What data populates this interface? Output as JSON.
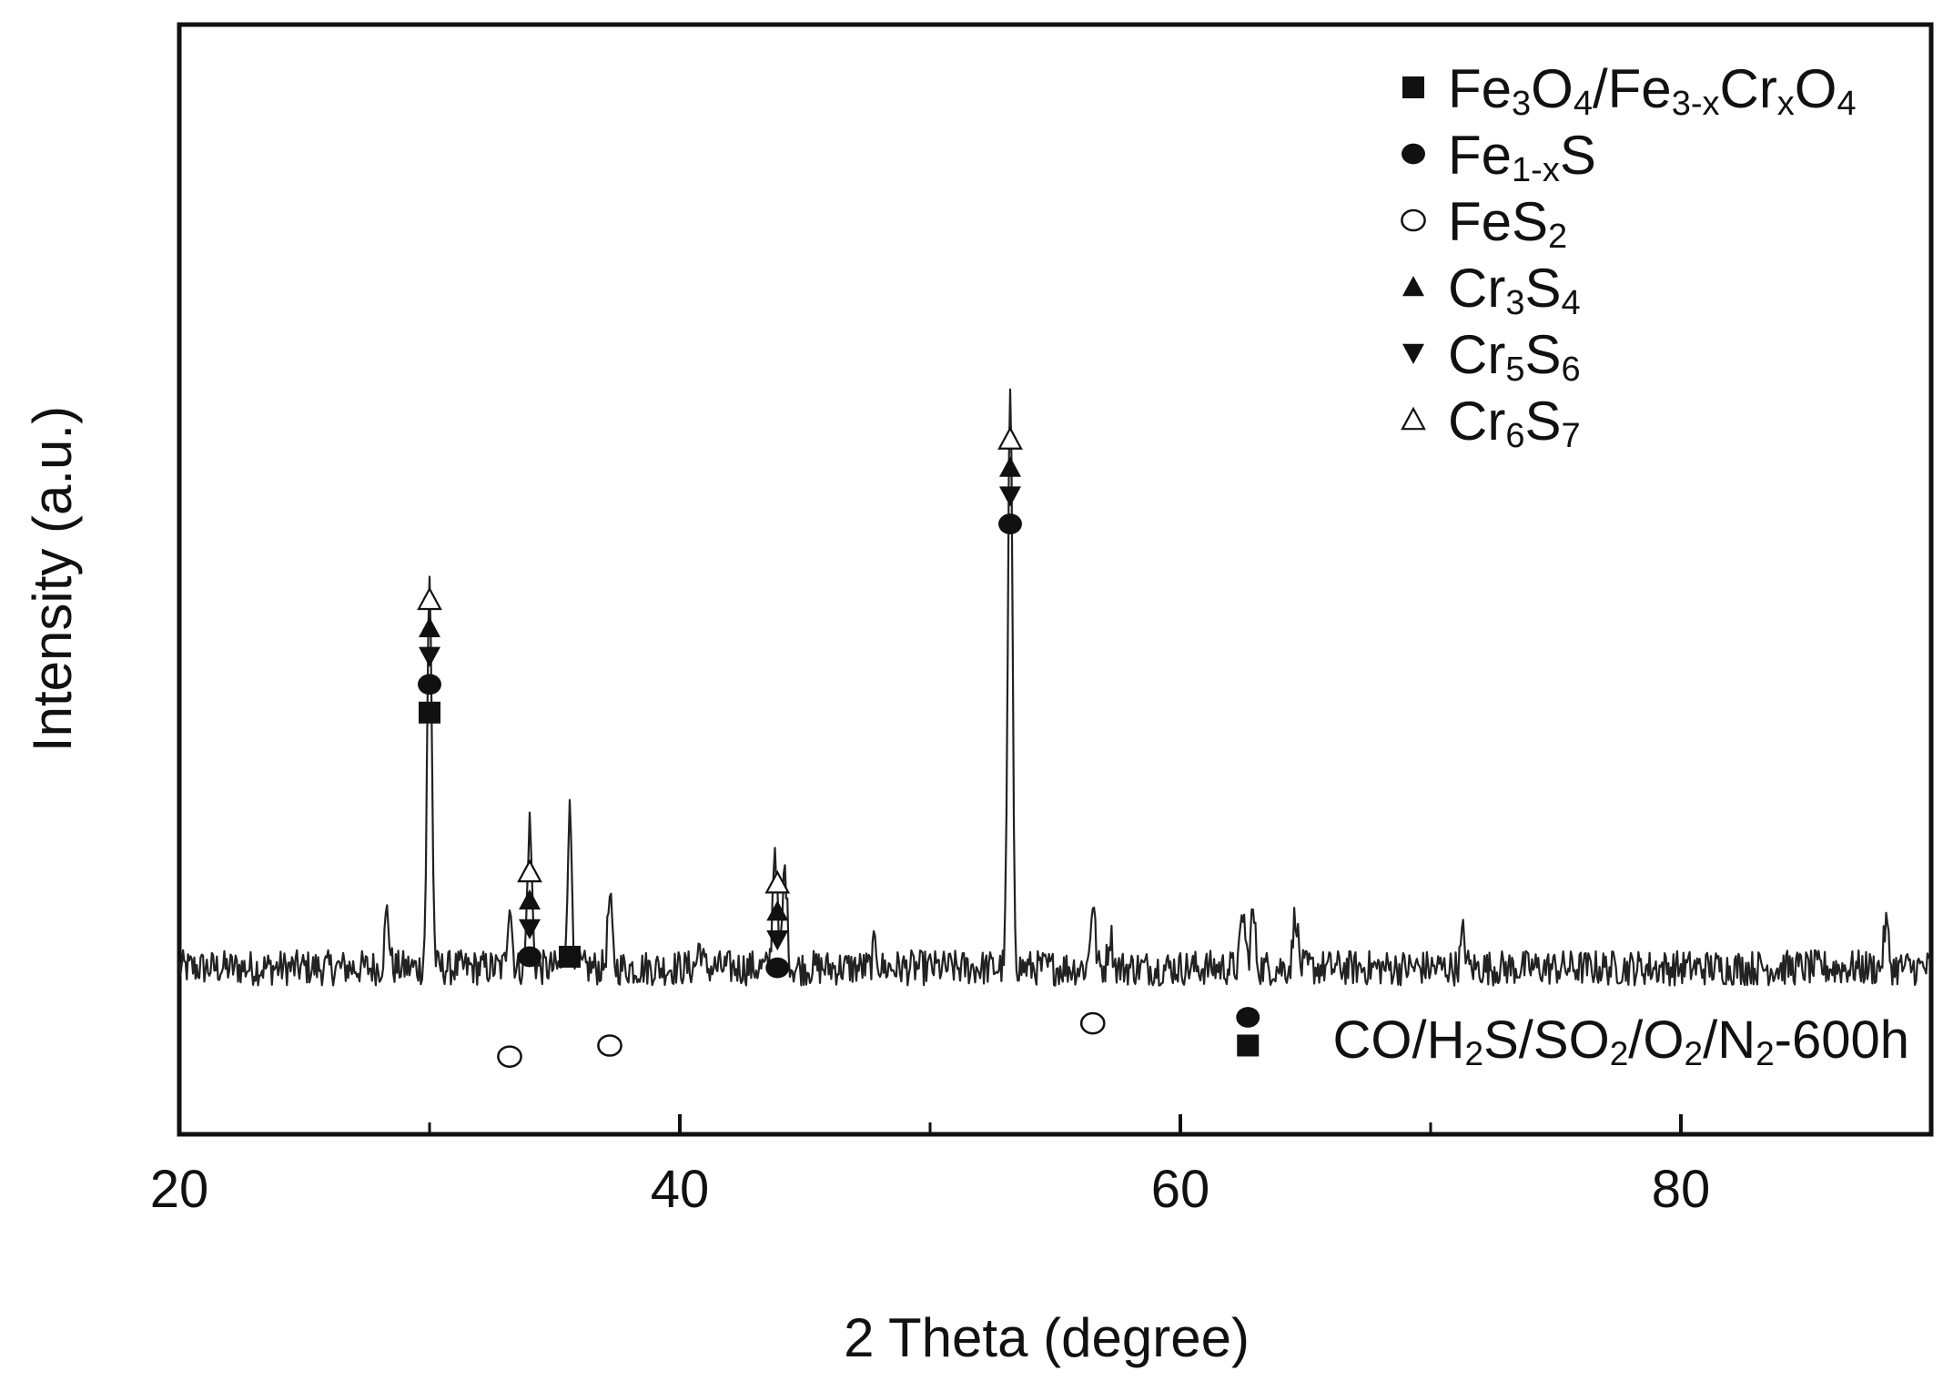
{
  "chart_data": {
    "type": "line",
    "title": "",
    "xlabel": "2 Theta (degree)",
    "ylabel": "Intensity (a.u.)",
    "xlim": [
      20,
      90
    ],
    "ylim": [
      0,
      100
    ],
    "xticks": [
      20,
      40,
      60,
      80
    ],
    "x_minor_ticks": [
      30,
      50,
      70,
      90
    ],
    "show_y_ticks": false,
    "grid": false,
    "legend_position": "top-right",
    "annotation": "CO/H2S/SO2/O2/N2-600h",
    "annotation_parts": [
      {
        "t": "CO/H",
        "s": ""
      },
      {
        "t": "2",
        "s": "sub"
      },
      {
        "t": "S/SO",
        "s": ""
      },
      {
        "t": "2",
        "s": "sub"
      },
      {
        "t": "/O",
        "s": ""
      },
      {
        "t": "2",
        "s": "sub"
      },
      {
        "t": "/N",
        "s": ""
      },
      {
        "t": "2",
        "s": "sub"
      },
      {
        "t": "-600h",
        "s": ""
      }
    ],
    "baseline": 15,
    "noise_amplitude": 1.6,
    "peaks": [
      {
        "x": 28.3,
        "h": 5
      },
      {
        "x": 30.0,
        "h": 35
      },
      {
        "x": 33.2,
        "h": 6
      },
      {
        "x": 34.0,
        "h": 13
      },
      {
        "x": 35.6,
        "h": 14
      },
      {
        "x": 37.2,
        "h": 6
      },
      {
        "x": 40.8,
        "h": 2
      },
      {
        "x": 43.8,
        "h": 11
      },
      {
        "x": 44.2,
        "h": 9
      },
      {
        "x": 47.8,
        "h": 2
      },
      {
        "x": 53.2,
        "h": 52
      },
      {
        "x": 56.5,
        "h": 6
      },
      {
        "x": 57.2,
        "h": 3
      },
      {
        "x": 62.5,
        "h": 5
      },
      {
        "x": 62.9,
        "h": 5
      },
      {
        "x": 64.6,
        "h": 5
      },
      {
        "x": 71.3,
        "h": 3
      },
      {
        "x": 88.2,
        "h": 4
      }
    ],
    "series": [
      {
        "name": "Fe3O4/Fe3-xCrxO4",
        "marker": "square",
        "parts": [
          {
            "t": "Fe",
            "s": ""
          },
          {
            "t": "3",
            "s": "sub"
          },
          {
            "t": "O",
            "s": ""
          },
          {
            "t": "4",
            "s": "sub"
          },
          {
            "t": "/Fe",
            "s": ""
          },
          {
            "t": "3-x",
            "s": "sub"
          },
          {
            "t": "Cr",
            "s": ""
          },
          {
            "t": "x",
            "s": "sub"
          },
          {
            "t": "O",
            "s": ""
          },
          {
            "t": "4",
            "s": "sub"
          }
        ]
      },
      {
        "name": "Fe1-xS",
        "marker": "circle",
        "parts": [
          {
            "t": "Fe",
            "s": ""
          },
          {
            "t": "1-x",
            "s": "sub"
          },
          {
            "t": "S",
            "s": ""
          }
        ]
      },
      {
        "name": "FeS2",
        "marker": "open-circle",
        "parts": [
          {
            "t": "FeS",
            "s": ""
          },
          {
            "t": "2",
            "s": "sub"
          }
        ]
      },
      {
        "name": "Cr3S4",
        "marker": "triangle-up",
        "parts": [
          {
            "t": "Cr",
            "s": ""
          },
          {
            "t": "3",
            "s": "sub"
          },
          {
            "t": "S",
            "s": ""
          },
          {
            "t": "4",
            "s": "sub"
          }
        ]
      },
      {
        "name": "Cr5S6",
        "marker": "triangle-down",
        "parts": [
          {
            "t": "Cr",
            "s": ""
          },
          {
            "t": "5",
            "s": "sub"
          },
          {
            "t": "S",
            "s": ""
          },
          {
            "t": "6",
            "s": "sub"
          }
        ]
      },
      {
        "name": "Cr6S7",
        "marker": "open-triangle",
        "parts": [
          {
            "t": "Cr",
            "s": ""
          },
          {
            "t": "6",
            "s": "sub"
          },
          {
            "t": "S",
            "s": ""
          },
          {
            "t": "7",
            "s": "sub"
          }
        ]
      }
    ],
    "peak_labels": [
      {
        "x": 30.0,
        "y": 38,
        "markers": [
          "square",
          "circle",
          "triangle-down",
          "triangle-up",
          "open-triangle"
        ]
      },
      {
        "x": 34.0,
        "y": 16,
        "markers": [
          "circle",
          "triangle-down",
          "triangle-up",
          "open-triangle"
        ]
      },
      {
        "x": 35.6,
        "y": 16,
        "markers": [
          "square"
        ]
      },
      {
        "x": 33.2,
        "y": 7,
        "markers": [
          "open-circle"
        ]
      },
      {
        "x": 37.2,
        "y": 8,
        "markers": [
          "open-circle"
        ]
      },
      {
        "x": 43.9,
        "y": 15,
        "markers": [
          "circle",
          "triangle-down",
          "triangle-up",
          "open-triangle"
        ]
      },
      {
        "x": 53.2,
        "y": 55,
        "markers": [
          "circle",
          "triangle-down",
          "triangle-up",
          "open-triangle"
        ]
      },
      {
        "x": 56.5,
        "y": 10,
        "markers": [
          "open-circle"
        ]
      },
      {
        "x": 62.7,
        "y": 8,
        "markers": [
          "square",
          "circle"
        ]
      }
    ],
    "colors": {
      "line": "#222222",
      "marker": "#111111",
      "axis": "#111111"
    }
  }
}
